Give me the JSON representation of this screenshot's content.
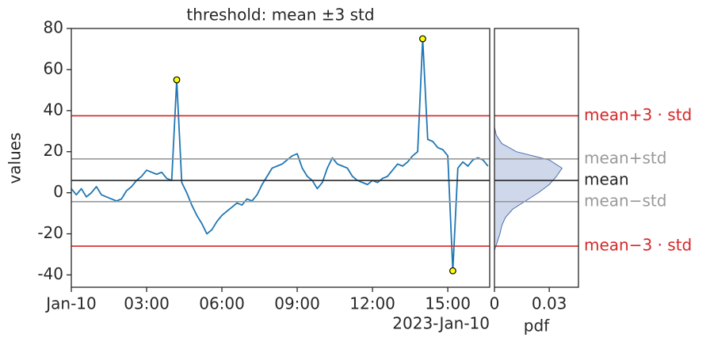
{
  "chart_data": {
    "type": "line",
    "title": "threshold: mean ±3 std",
    "y_label": "values",
    "x_offset_label": "2023-Jan-10",
    "xlim": [
      0,
      16.67
    ],
    "xticks": [
      {
        "value": 0,
        "label": "Jan-10"
      },
      {
        "value": 3,
        "label": "03:00"
      },
      {
        "value": 6,
        "label": "06:00"
      },
      {
        "value": 9,
        "label": "09:00"
      },
      {
        "value": 12,
        "label": "12:00"
      },
      {
        "value": 15,
        "label": "15:00"
      }
    ],
    "ylim": [
      -46,
      80
    ],
    "yticks": [
      -40,
      -20,
      0,
      20,
      40,
      60,
      80
    ],
    "series": [
      {
        "color": "#1f77b4",
        "x": [
          0,
          0.2,
          0.4,
          0.6,
          0.8,
          1,
          1.2,
          1.4,
          1.6,
          1.8,
          2,
          2.2,
          2.4,
          2.6,
          2.8,
          3,
          3.2,
          3.4,
          3.6,
          3.8,
          4,
          4.2,
          4.4,
          4.6,
          4.8,
          5,
          5.2,
          5.4,
          5.6,
          5.8,
          6,
          6.2,
          6.4,
          6.6,
          6.8,
          7,
          7.2,
          7.4,
          7.6,
          7.8,
          8,
          8.2,
          8.4,
          8.6,
          8.8,
          9,
          9.2,
          9.4,
          9.6,
          9.8,
          10,
          10.2,
          10.4,
          10.6,
          10.8,
          11,
          11.2,
          11.4,
          11.6,
          11.8,
          12,
          12.2,
          12.4,
          12.6,
          12.8,
          13,
          13.2,
          13.4,
          13.6,
          13.8,
          14,
          14.2,
          14.4,
          14.6,
          14.8,
          15,
          15.2,
          15.4,
          15.6,
          15.8,
          16,
          16.2,
          16.4,
          16.6
        ],
        "values": [
          2,
          -1,
          2,
          -2,
          0,
          3,
          -1,
          -2,
          -3,
          -4,
          -3,
          1,
          3,
          6,
          8,
          11,
          10,
          9,
          10,
          7,
          6,
          55,
          5,
          0,
          -6,
          -11,
          -15,
          -20,
          -18,
          -14,
          -11,
          -9,
          -7,
          -5,
          -6,
          -3,
          -4,
          -1,
          4,
          8,
          12,
          13,
          14,
          16,
          18,
          19,
          12,
          8,
          6,
          2,
          5,
          12,
          17,
          14,
          13,
          12,
          8,
          6,
          5,
          4,
          6,
          5,
          7,
          8,
          11,
          14,
          13,
          15,
          18,
          20,
          75,
          26,
          25,
          22,
          21,
          18,
          -38,
          12,
          15,
          13,
          16,
          17,
          16,
          13
        ]
      }
    ],
    "outliers": {
      "color": "#ffff00",
      "x": [
        4.2,
        14.0,
        15.2
      ],
      "y": [
        55,
        75,
        -38
      ]
    },
    "thresholds": [
      {
        "name": "mean+3 · std",
        "value": 37.5,
        "color": "#d62728"
      },
      {
        "name": "mean+std",
        "value": 16.5,
        "color": "#999999"
      },
      {
        "name": "mean",
        "value": 6,
        "color": "#262626"
      },
      {
        "name": "mean−std",
        "value": -4.3,
        "color": "#999999"
      },
      {
        "name": "mean−3 · std",
        "value": -26,
        "color": "#d62728"
      }
    ],
    "kde": {
      "x_label": "pdf",
      "xlim": [
        0,
        0.046
      ],
      "xticks": [
        0,
        0.03
      ],
      "fill": "#cfd8ea",
      "color": "#4c6db0",
      "y": [
        -28,
        -24,
        -20,
        -16,
        -12,
        -8,
        -4,
        0,
        4,
        8,
        12,
        16,
        20,
        24,
        28,
        32
      ],
      "density": [
        0,
        0.0015,
        0.003,
        0.004,
        0.006,
        0.01,
        0.017,
        0.024,
        0.03,
        0.034,
        0.037,
        0.03,
        0.012,
        0.004,
        0.001,
        0
      ]
    }
  }
}
